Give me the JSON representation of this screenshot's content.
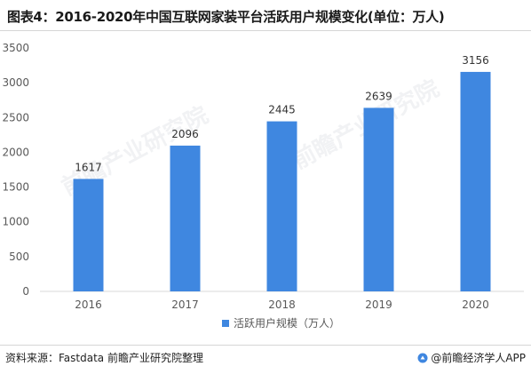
{
  "title": "图表4：2016-2020年中国互联网家装平台活跃用户规模变化(单位：万人)",
  "source": "资料来源：Fastdata 前瞻产业研究院整理",
  "brand": "@前瞻经济学人APP",
  "watermark": "前瞻产业研究院",
  "colors": {
    "bar": "#3f87e0",
    "axis": "#d9d9d9",
    "text": "#595959"
  },
  "chart_data": {
    "type": "bar",
    "categories": [
      "2016",
      "2017",
      "2018",
      "2019",
      "2020"
    ],
    "series": [
      {
        "name": "活跃用户规模（万人）",
        "values": [
          1617,
          2096,
          2445,
          2639,
          3156
        ]
      }
    ],
    "ylim": [
      0,
      3500
    ],
    "yticks": [
      0,
      500,
      1000,
      1500,
      2000,
      2500,
      3000,
      3500
    ],
    "grid": false,
    "legend": "bottom"
  }
}
